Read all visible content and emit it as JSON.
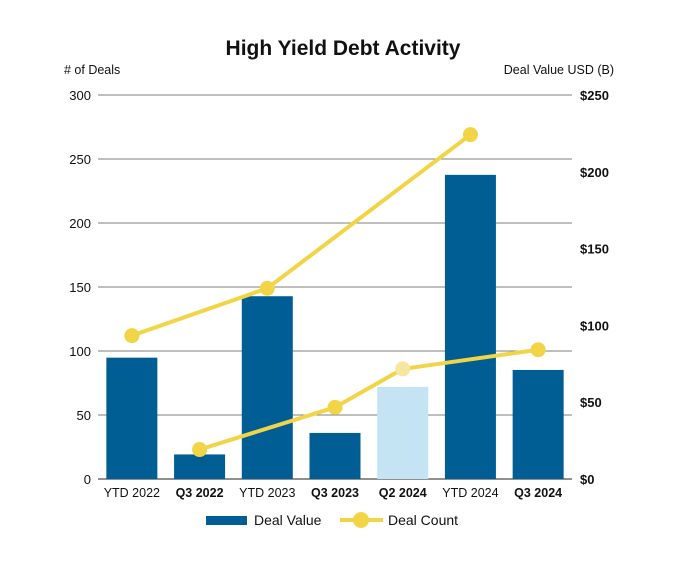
{
  "chart_data": {
    "type": "bar",
    "title": "High Yield Debt Activity",
    "ylabel_left": "# of Deals",
    "ylabel_right": "Deal Value USD (B)",
    "categories": [
      "YTD 2022",
      "Q3 2022",
      "YTD 2023",
      "Q3 2023",
      "Q2 2024",
      "YTD 2024",
      "Q3 2024"
    ],
    "bold_categories": [
      "Q3 2022",
      "Q3 2023",
      "Q2 2024",
      "Q3 2024"
    ],
    "left_axis": {
      "ylim": [
        0,
        300
      ],
      "ticks": [
        "0",
        "50",
        "100",
        "150",
        "200",
        "250",
        "300"
      ]
    },
    "right_axis": {
      "ylim": [
        0,
        250
      ],
      "ticks": [
        "$0",
        "$50",
        "$100",
        "$150",
        "$200",
        "$250"
      ]
    },
    "grid": true,
    "legend_position": "bottom",
    "series": [
      {
        "name": "Deal Value",
        "type": "bar",
        "axis": "right",
        "values": [
          79,
          16,
          119,
          30,
          60,
          198,
          71
        ],
        "color": "#005e94",
        "highlight_color": "#c5e4f3",
        "highlight_index": 4
      },
      {
        "name": "Deal Count",
        "type": "line",
        "axis": "left",
        "lines": [
          {
            "categories": [
              "YTD 2022",
              "YTD 2023",
              "YTD 2024"
            ],
            "values": [
              112,
              149,
              269
            ]
          },
          {
            "categories": [
              "Q3 2022",
              "Q3 2023",
              "Q2 2024",
              "Q3 2024"
            ],
            "values": [
              23,
              56,
              86,
              101
            ]
          }
        ],
        "color": "#f2d447",
        "faded_color": "#f6e6a0",
        "faded_point": "Q2 2024"
      }
    ]
  }
}
